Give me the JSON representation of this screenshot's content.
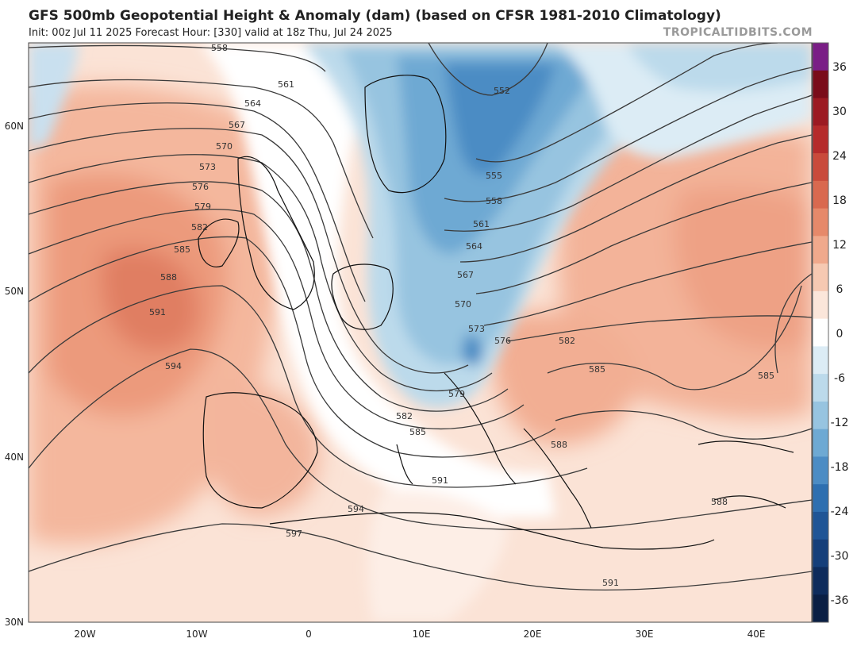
{
  "header": {
    "title": "GFS 500mb Geopotential Height & Anomaly (dam) (based on CFSR 1981-2010 Climatology)",
    "subtitle": "Init: 00z Jul 11 2025   Forecast Hour: [330]   valid at 18z Thu, Jul 24 2025",
    "watermark": "TROPICALTIDBITS.COM"
  },
  "map": {
    "lat_labels": [
      "60N",
      "50N",
      "40N",
      "30N"
    ],
    "lon_labels": [
      "20W",
      "10W",
      "0",
      "10E",
      "20E",
      "30E",
      "40E"
    ],
    "contour_labels": [
      "558",
      "561",
      "564",
      "567",
      "570",
      "573",
      "576",
      "579",
      "582",
      "585",
      "588",
      "591",
      "594",
      "597",
      "552",
      "555",
      "558",
      "561",
      "564",
      "567",
      "570",
      "573",
      "576",
      "579",
      "582",
      "585",
      "591",
      "594",
      "582",
      "585",
      "588",
      "585",
      "588",
      "591"
    ]
  },
  "colorbar": {
    "labels": [
      "36",
      "30",
      "24",
      "18",
      "12",
      "6",
      "0",
      "-6",
      "-12",
      "-18",
      "-24",
      "-30",
      "-36"
    ],
    "colors": [
      "#7a1e86",
      "#7a0c1a",
      "#9c1a22",
      "#b52b2b",
      "#c94a3b",
      "#d9694f",
      "#e6896a",
      "#f0a98c",
      "#f6c9b2",
      "#fbe6da",
      "#ffffff",
      "#dcecf5",
      "#bcdaeb",
      "#97c4e0",
      "#6ea9d3",
      "#4c8cc4",
      "#2e6fb0",
      "#1f5596",
      "#153f7a",
      "#0e2c5c",
      "#0a1f44"
    ]
  }
}
